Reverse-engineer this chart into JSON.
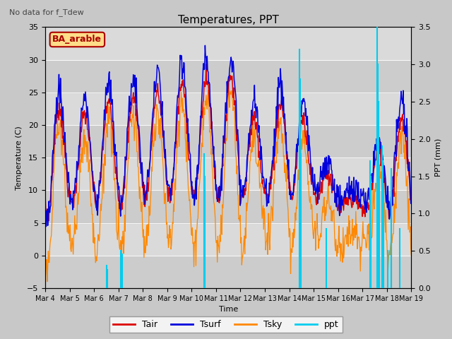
{
  "title": "Temperatures, PPT",
  "subtitle": "No data for f_Tdew",
  "annotation": "BA_arable",
  "xlabel": "Time",
  "ylabel_left": "Temperature (C)",
  "ylabel_right": "PPT (mm)",
  "ylim_left": [
    -5,
    35
  ],
  "ylim_right": [
    0.0,
    3.5
  ],
  "yticks_left": [
    -5,
    0,
    5,
    10,
    15,
    20,
    25,
    30,
    35
  ],
  "yticks_right": [
    0.0,
    0.5,
    1.0,
    1.5,
    2.0,
    2.5,
    3.0,
    3.5
  ],
  "xticklabels": [
    "Mar 4",
    "Mar 5",
    "Mar 6",
    "Mar 7",
    "Mar 8",
    "Mar 9",
    "Mar 10",
    "Mar 11",
    "Mar 12",
    "Mar 13",
    "Mar 14",
    "Mar 15",
    "Mar 16",
    "Mar 17",
    "Mar 18",
    "Mar 19"
  ],
  "colors": {
    "tair": "#dd0000",
    "tsurf": "#0000dd",
    "tsky": "#ff8800",
    "ppt": "#00ccee",
    "fig_bg": "#c8c8c8",
    "plot_bg": "#e0e0e0",
    "band_dark": "#cccccc",
    "band_light": "#dadada"
  },
  "n_days": 15,
  "n_points_per_day": 48
}
